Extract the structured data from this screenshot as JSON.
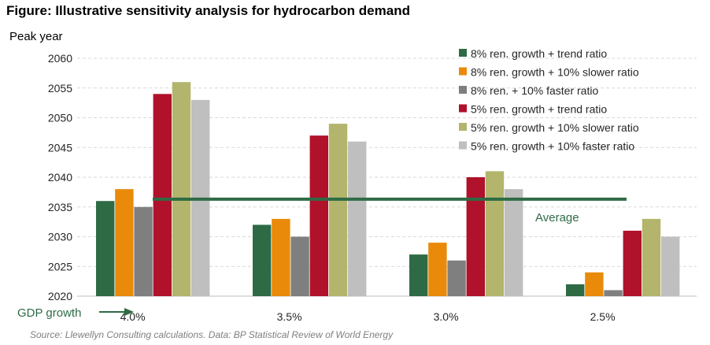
{
  "figure_title": "Figure: Illustrative sensitivity analysis for hydrocarbon demand",
  "source": "Source: Llewellyn Consulting calculations. Data: BP Statistical Review of World Energy",
  "chart_data": {
    "type": "bar",
    "title": "",
    "ylabel": "Peak year",
    "xlabel": "GDP growth",
    "ylim": [
      2020,
      2060
    ],
    "yticks": [
      2020,
      2025,
      2030,
      2035,
      2040,
      2045,
      2050,
      2055,
      2060
    ],
    "grid": true,
    "legend_position": "top-right",
    "categories": [
      "4.0%",
      "3.5%",
      "3.0%",
      "2.5%"
    ],
    "series": [
      {
        "name": "8% ren. growth + trend ratio",
        "color": "#2e6b45",
        "values": [
          2036,
          2032,
          2027,
          2022
        ]
      },
      {
        "name": "8% ren. growth + 10% slower ratio",
        "color": "#e98a0b",
        "values": [
          2038,
          2033,
          2029,
          2024
        ]
      },
      {
        "name": "8% ren. + 10% faster ratio",
        "color": "#7f7f7f",
        "values": [
          2035,
          2030,
          2026,
          2021
        ]
      },
      {
        "name": "5% ren. growth + trend ratio",
        "color": "#b0112b",
        "values": [
          2054,
          2047,
          2040,
          2031
        ]
      },
      {
        "name": "5% ren. growth + 10% slower ratio",
        "color": "#b2b56b",
        "values": [
          2056,
          2049,
          2041,
          2033
        ]
      },
      {
        "name": "5% ren. growth + 10% faster ratio",
        "color": "#bfbfbf",
        "values": [
          2053,
          2046,
          2038,
          2030
        ]
      }
    ],
    "average": {
      "label": "Average",
      "value": 2036.3,
      "color": "#2e6b45"
    }
  }
}
